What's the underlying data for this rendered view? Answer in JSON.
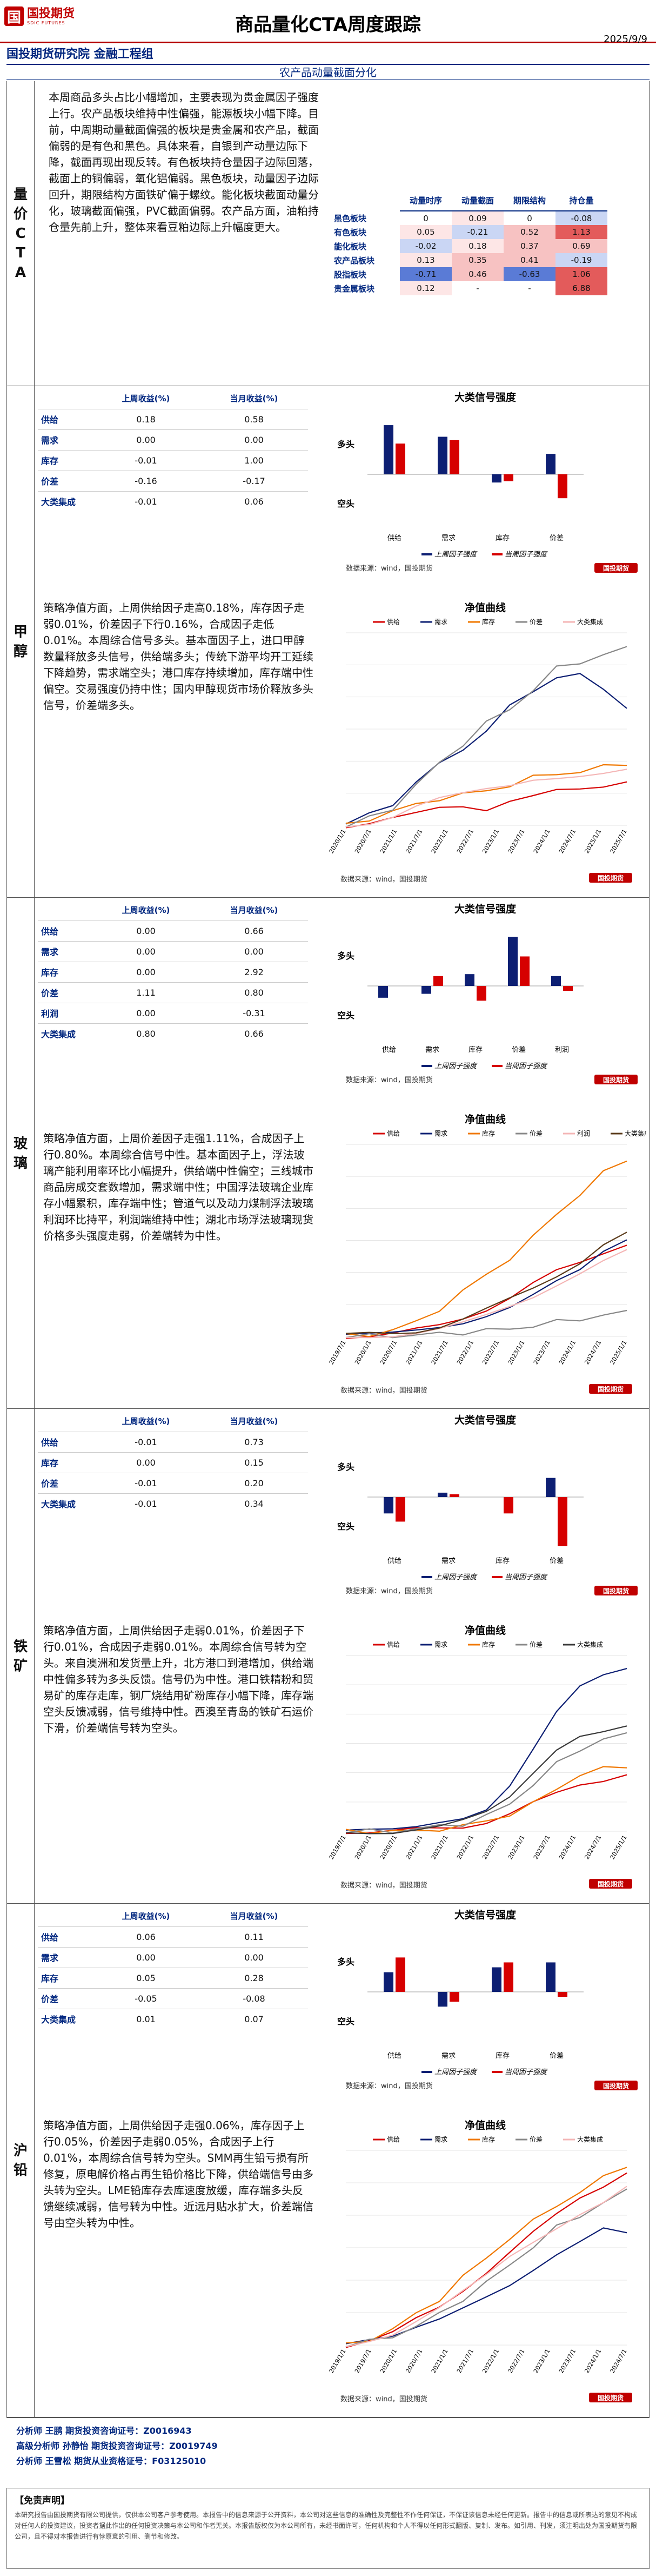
{
  "header": {
    "logo_text": "国投期货",
    "logo_sub": "SDIC FUTURES",
    "title": "商品量化CTA周度跟踪",
    "org": "国投期货研究院 金融工程组",
    "date": "2025/9/9",
    "section": "农产品动量截面分化"
  },
  "colors": {
    "red": "#d60000",
    "navy": "#0d1f73",
    "orange": "#f07800",
    "gray": "#888888",
    "lightred": "#f4b6b6",
    "lightblue": "#b7c7ef"
  },
  "overview": {
    "label": "量价CTA",
    "text": "本周商品多头占比小幅增加，主要表现为贵金属因子强度上行。农产品板块维持中性偏强，能源板块小幅下降。目前，中周期动量截面偏强的板块是贵金属和农产品，截面偏弱的是有色和黑色。具体来看，自银到产动量边际下降，截面再现出现反转。有色板块持仓量因子边际回落，截面上的铜偏弱，氧化铝偏弱。黑色板块，动量因子边际回升，期限结构方面铁矿偏于螺纹。能化板块截面动量分化，玻璃截面偏强，PVC截面偏弱。农产品方面，油粕持仓量先前上升，整体来看豆粕边际上升幅度更大。",
    "heat_headers": [
      "动量时序",
      "动量截面",
      "期限结构",
      "持仓量"
    ],
    "heat_rows": [
      {
        "name": "黑色板块",
        "values": [
          "0",
          "0.09",
          "0",
          "-0.08"
        ]
      },
      {
        "name": "有色板块",
        "values": [
          "0.05",
          "-0.21",
          "0.52",
          "1.13"
        ]
      },
      {
        "name": "能化板块",
        "values": [
          "-0.02",
          "0.18",
          "0.37",
          "0.69"
        ]
      },
      {
        "name": "农产品板块",
        "values": [
          "0.13",
          "0.35",
          "0.41",
          "-0.19"
        ]
      },
      {
        "name": "股指板块",
        "values": [
          "-0.71",
          "0.46",
          "-0.63",
          "1.06"
        ]
      },
      {
        "name": "贵金属板块",
        "values": [
          "0.12",
          "-",
          "-",
          "6.88"
        ]
      }
    ]
  },
  "table_headers": [
    "上周收益(%)",
    "当月收益(%)"
  ],
  "signal_title": "大类信号强度",
  "nav_title": "净值曲线",
  "source": "数据来源：wind，国投期货",
  "legend_last": "上周因子强度",
  "legend_this": "当周因子强度",
  "y_long": "多头",
  "y_short": "空头",
  "commodities": [
    {
      "label": "甲醇",
      "rows": [
        {
          "name": "供给",
          "last": "0.18",
          "month": "0.58"
        },
        {
          "name": "需求",
          "last": "0.00",
          "month": "0.00"
        },
        {
          "name": "库存",
          "last": "-0.01",
          "month": "1.00"
        },
        {
          "name": "价差",
          "last": "-0.16",
          "month": "-0.17"
        },
        {
          "name": "大类集成",
          "last": "-0.01",
          "month": "0.06"
        }
      ],
      "signal_cats": [
        "供给",
        "需求",
        "库存",
        "价差"
      ],
      "signal_last": [
        0.72,
        0.55,
        -0.12,
        0.3
      ],
      "signal_this": [
        0.45,
        0.5,
        -0.1,
        -0.35
      ],
      "text": "策略净值方面，上周供给因子走高0.18%，库存因子走弱0.01%，价差因子下行0.16%，合成因子走低0.01%。本周综合信号多头。基本面因子上，进口甲醇数量释放多头信号，供给端多头；传统下游平均开工延续下降趋势，需求端空头；港口库存持续增加，库存端中性偏空。交易强度仍持中性；国内甲醇现货市场价释放多头信号，价差端多头。",
      "nav_legend": [
        "供给",
        "需求",
        "库存",
        "价差",
        "大类集成"
      ],
      "nav_x": [
        "2020/1/1",
        "2020/7/1",
        "2021/1/1",
        "2021/7/1",
        "2022/1/1",
        "2022/7/1",
        "2023/1/1",
        "2023/7/1",
        "2024/1/1",
        "2024/7/1",
        "2025/1/1",
        "2025/7/1"
      ],
      "nav_series": [
        {
          "name": "供给",
          "color": "#d60000",
          "values": [
            1.0,
            1.01,
            1.02,
            1.03,
            1.05,
            1.06,
            1.05,
            1.07,
            1.08,
            1.1,
            1.11,
            1.12,
            1.13
          ]
        },
        {
          "name": "需求",
          "color": "#0d1f73",
          "values": [
            1.0,
            1.03,
            1.05,
            1.12,
            1.18,
            1.22,
            1.28,
            1.36,
            1.4,
            1.44,
            1.45,
            1.4,
            1.34
          ]
        },
        {
          "name": "库存",
          "color": "#f07800",
          "values": [
            1.0,
            1.02,
            1.04,
            1.06,
            1.08,
            1.09,
            1.1,
            1.12,
            1.14,
            1.15,
            1.16,
            1.17,
            1.18
          ]
        },
        {
          "name": "价差",
          "color": "#888888",
          "values": [
            1.0,
            1.02,
            1.05,
            1.12,
            1.18,
            1.24,
            1.3,
            1.34,
            1.4,
            1.46,
            1.48,
            1.5,
            1.52
          ]
        },
        {
          "name": "大类集成",
          "color": "#f4b6b6",
          "values": [
            1.0,
            1.01,
            1.03,
            1.06,
            1.08,
            1.09,
            1.1,
            1.11,
            1.13,
            1.14,
            1.15,
            1.16,
            1.17
          ]
        }
      ]
    },
    {
      "label": "玻璃",
      "rows": [
        {
          "name": "供给",
          "last": "0.00",
          "month": "0.66"
        },
        {
          "name": "需求",
          "last": "0.00",
          "month": "0.00"
        },
        {
          "name": "库存",
          "last": "0.00",
          "month": "2.92"
        },
        {
          "name": "价差",
          "last": "1.11",
          "month": "0.80"
        },
        {
          "name": "利润",
          "last": "0.00",
          "month": "-0.31"
        },
        {
          "name": "大类集成",
          "last": "0.80",
          "month": "0.66"
        }
      ],
      "signal_cats": [
        "供给",
        "需求",
        "库存",
        "价差",
        "利润"
      ],
      "signal_last": [
        -0.12,
        -0.08,
        0.12,
        0.5,
        0.1
      ],
      "signal_this": [
        0.0,
        0.1,
        -0.15,
        0.3,
        -0.05
      ],
      "text": "策略净值方面，上周价差因子走强1.11%，合成因子上行0.80%。本周综合信号中性。基本面因子上，浮法玻璃产能利用率环比小幅提升，供给端中性偏空；三线城市商品房成交套数增加，需求端中性；中国浮法玻璃企业库存小幅累积，库存端中性；管道气以及动力煤制浮法玻璃利润环比持平，利润端维持中性；湖北市场浮法玻璃现货价格多头强度走弱，价差端转为中性。",
      "nav_legend": [
        "供给",
        "需求",
        "库存",
        "价差",
        "利润",
        "大类集成"
      ],
      "nav_x": [
        "2019/7/1",
        "2020/1/1",
        "2020/7/1",
        "2021/1/1",
        "2021/7/1",
        "2022/1/1",
        "2022/7/1",
        "2023/1/1",
        "2023/7/1",
        "2024/1/1",
        "2024/7/1",
        "2025/1/1"
      ],
      "nav_series": [
        {
          "name": "供给",
          "color": "#d60000",
          "values": [
            1.0,
            1.02,
            1.05,
            1.15,
            1.3,
            1.55,
            1.8,
            2.1,
            2.5,
            2.9,
            3.2,
            3.5,
            3.7
          ]
        },
        {
          "name": "需求",
          "color": "#0d1f73",
          "values": [
            1.0,
            1.01,
            1.03,
            1.1,
            1.2,
            1.35,
            1.6,
            1.9,
            2.3,
            2.7,
            3.0,
            3.5,
            3.8
          ]
        },
        {
          "name": "库存",
          "color": "#f07800",
          "values": [
            1.0,
            1.05,
            1.15,
            1.4,
            1.8,
            2.3,
            2.8,
            3.3,
            3.9,
            4.6,
            5.2,
            5.8,
            6.2
          ]
        },
        {
          "name": "价差",
          "color": "#888888",
          "values": [
            1.0,
            0.98,
            1.0,
            1.02,
            1.05,
            1.1,
            1.15,
            1.2,
            1.3,
            1.4,
            1.5,
            1.6,
            1.7
          ]
        },
        {
          "name": "利润",
          "color": "#f4b6b6",
          "values": [
            1.0,
            1.02,
            1.04,
            1.1,
            1.2,
            1.35,
            1.55,
            1.8,
            2.1,
            2.5,
            2.9,
            3.3,
            3.6
          ]
        },
        {
          "name": "大类集成",
          "color": "#5a3a1a",
          "values": [
            1.0,
            1.03,
            1.06,
            1.15,
            1.3,
            1.5,
            1.75,
            2.05,
            2.4,
            2.8,
            3.2,
            3.7,
            4.0
          ]
        }
      ]
    },
    {
      "label": "铁矿",
      "rows": [
        {
          "name": "供给",
          "last": "-0.01",
          "month": "0.73"
        },
        {
          "name": "库存",
          "last": "0.00",
          "month": "0.15"
        },
        {
          "name": "价差",
          "last": "-0.01",
          "month": "0.20"
        },
        {
          "name": "大类集成",
          "last": "-0.01",
          "month": "0.34"
        }
      ],
      "signal_cats": [
        "供给",
        "需求",
        "库存",
        "价差"
      ],
      "signal_last": [
        -0.3,
        0.08,
        0.0,
        0.35
      ],
      "signal_this": [
        -0.45,
        0.05,
        -0.3,
        -0.9
      ],
      "text": "策略净值方面，上周供给因子走弱0.01%，价差因子下行0.01%，合成因子走弱0.01%。本周综合信号转为空头。来自澳洲和发货量上升，北方港口到港增加，供给端中性偏多转为多头反馈。信号仍为中性。港口铁精粉和贸易矿的库存走库，钢厂烧结用矿粉库存小幅下降，库存端空头反馈减弱，信号维持中性。西澳至青岛的铁矿石运价下滑，价差端信号转为空头。",
      "nav_legend": [
        "供给",
        "需求",
        "库存",
        "价差",
        "大类集成"
      ],
      "nav_x": [
        "2019/7/1",
        "2020/1/1",
        "2020/7/1",
        "2021/1/1",
        "2021/7/1",
        "2022/1/1",
        "2022/7/1",
        "2023/1/1",
        "2023/7/1",
        "2024/1/1",
        "2024/7/1",
        "2025/1/1"
      ],
      "nav_series": [
        {
          "name": "供给",
          "color": "#d60000",
          "values": [
            1,
            1,
            1,
            1.5,
            2,
            3,
            5,
            8,
            12,
            16,
            20,
            22,
            24
          ]
        },
        {
          "name": "需求",
          "color": "#0d1f73",
          "values": [
            1,
            1,
            1,
            2,
            4,
            6,
            10,
            20,
            35,
            50,
            60,
            64,
            66
          ]
        },
        {
          "name": "库存",
          "color": "#f07800",
          "values": [
            1,
            1,
            1,
            1,
            2,
            3,
            5,
            8,
            12,
            18,
            24,
            26,
            27
          ]
        },
        {
          "name": "价差",
          "color": "#888888",
          "values": [
            1,
            1,
            1,
            2,
            3,
            4,
            7,
            12,
            20,
            28,
            34,
            38,
            40
          ]
        },
        {
          "name": "大类集成",
          "color": "#3a3a3a",
          "values": [
            1,
            1,
            1,
            2,
            3,
            5,
            8,
            14,
            24,
            34,
            40,
            42,
            44
          ]
        }
      ]
    },
    {
      "label": "沪铅",
      "rows": [
        {
          "name": "供给",
          "last": "0.06",
          "month": "0.11"
        },
        {
          "name": "需求",
          "last": "0.00",
          "month": "0.00"
        },
        {
          "name": "库存",
          "last": "0.05",
          "month": "0.28"
        },
        {
          "name": "价差",
          "last": "-0.05",
          "month": "-0.08"
        },
        {
          "name": "大类集成",
          "last": "0.01",
          "month": "0.07"
        }
      ],
      "signal_cats": [
        "供给",
        "需求",
        "库存",
        "价差"
      ],
      "signal_last": [
        0.2,
        -0.15,
        0.25,
        0.3
      ],
      "signal_this": [
        0.35,
        -0.1,
        0.3,
        -0.05
      ],
      "text": "策略净值方面，上周供给因子走强0.06%，库存因子上行0.05%，价差因子走弱0.05%，合成因子上行0.01%，本周综合信号转为空头。SMM再生铅亏损有所修复，原电解价格占再生铅价格比下降，供给端信号由多头转为空头。LME铅库存去库速度放缓，库存端多头反馈继续减弱，信号转为中性。近远月贴水扩大，价差端信号由空头转为中性。",
      "nav_legend": [
        "供给",
        "需求",
        "库存",
        "价差",
        "大类集成"
      ],
      "nav_x": [
        "2019/1/1",
        "2019/7/1",
        "2020/1/1",
        "2020/7/1",
        "2021/1/1",
        "2021/7/1",
        "2022/1/1",
        "2022/7/1",
        "2023/1/1",
        "2023/7/1",
        "2024/1/1",
        "2024/7/1"
      ],
      "nav_series": [
        {
          "name": "供给",
          "color": "#d60000",
          "values": [
            1.0,
            1.02,
            1.04,
            1.08,
            1.12,
            1.18,
            1.24,
            1.3,
            1.36,
            1.42,
            1.48,
            1.52,
            1.56
          ]
        },
        {
          "name": "需求",
          "color": "#0d1f73",
          "values": [
            1.0,
            1.01,
            1.02,
            1.05,
            1.08,
            1.12,
            1.16,
            1.2,
            1.25,
            1.3,
            1.34,
            1.38,
            1.36
          ]
        },
        {
          "name": "库存",
          "color": "#f07800",
          "values": [
            1.0,
            1.02,
            1.05,
            1.1,
            1.15,
            1.22,
            1.28,
            1.35,
            1.4,
            1.45,
            1.5,
            1.54,
            1.58
          ]
        },
        {
          "name": "价差",
          "color": "#888888",
          "values": [
            1.0,
            1.01,
            1.03,
            1.06,
            1.1,
            1.15,
            1.2,
            1.26,
            1.32,
            1.38,
            1.42,
            1.46,
            1.5
          ]
        },
        {
          "name": "大类集成",
          "color": "#f4b6b6",
          "values": [
            1.0,
            1.02,
            1.04,
            1.08,
            1.12,
            1.17,
            1.22,
            1.28,
            1.33,
            1.38,
            1.43,
            1.47,
            1.52
          ]
        }
      ]
    }
  ],
  "footer": {
    "lines": [
      "分析师  王鹏  期货投资咨询证号：Z0016943",
      "高级分析师  孙静怡  期货投资咨询证号：Z0019749",
      "分析师  王雪松  期货从业资格证号：F03125010"
    ],
    "disclaimer_title": "【免责声明】",
    "disclaimer": "本研究报告由国投期货有限公司提供，仅供本公司客户参考使用。本报告中的信息来源于公开资料，本公司对这些信息的准确性及完整性不作任何保证，不保证该信息未经任何更新。报告中的信息或所表达的意见不构成对任何人的投资建议，投资者据此作出的任何投资决策与本公司和作者无关。本报告版权仅为本公司所有，未经书面许可，任何机构和个人不得以任何形式翻版、复制、发布。如引用、刊发，须注明出处为国投期货有限公司，且不得对本报告进行有悖原意的引用、删节和修改。"
  }
}
